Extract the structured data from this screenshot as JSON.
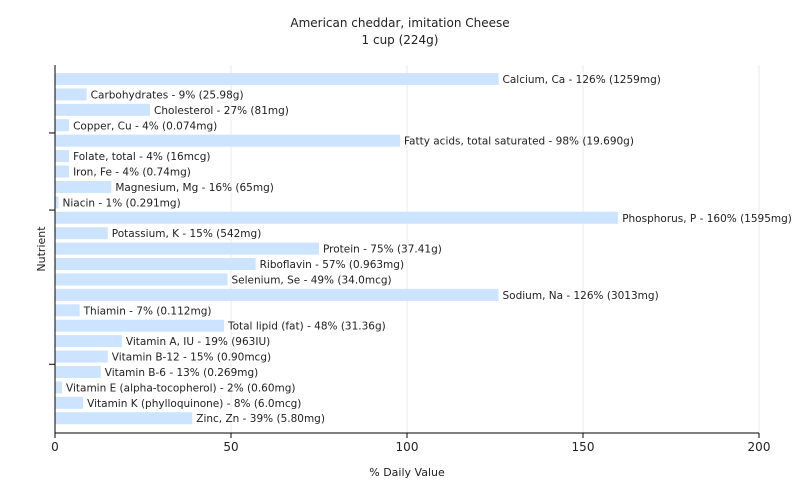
{
  "chart_data": {
    "type": "bar",
    "orientation": "horizontal",
    "title": "American cheddar, imitation Cheese",
    "subtitle": "1 cup (224g)",
    "xlabel": "% Daily Value",
    "ylabel": "Nutrient",
    "xlim": [
      0,
      200
    ],
    "xticks": [
      0,
      50,
      100,
      150,
      200
    ],
    "grid": true,
    "bar_color": "#cce4ff",
    "categories": [
      "Calcium, Ca",
      "Carbohydrates",
      "Cholesterol",
      "Copper, Cu",
      "Fatty acids, total saturated",
      "Folate, total",
      "Iron, Fe",
      "Magnesium, Mg",
      "Niacin",
      "Phosphorus, P",
      "Potassium, K",
      "Protein",
      "Riboflavin",
      "Selenium, Se",
      "Sodium, Na",
      "Thiamin",
      "Total lipid (fat)",
      "Vitamin A, IU",
      "Vitamin B-12",
      "Vitamin B-6",
      "Vitamin E (alpha-tocopherol)",
      "Vitamin K (phylloquinone)",
      "Zinc, Zn"
    ],
    "values": [
      126,
      9,
      27,
      4,
      98,
      4,
      4,
      16,
      1,
      160,
      15,
      75,
      57,
      49,
      126,
      7,
      48,
      19,
      15,
      13,
      2,
      8,
      39
    ],
    "labels": [
      "Calcium, Ca - 126% (1259mg)",
      "Carbohydrates - 9% (25.98g)",
      "Cholesterol - 27% (81mg)",
      "Copper, Cu - 4% (0.074mg)",
      "Fatty acids, total saturated - 98% (19.690g)",
      "Folate, total - 4% (16mcg)",
      "Iron, Fe - 4% (0.74mg)",
      "Magnesium, Mg - 16% (65mg)",
      "Niacin - 1% (0.291mg)",
      "Phosphorus, P - 160% (1595mg)",
      "Potassium, K - 15% (542mg)",
      "Protein - 75% (37.41g)",
      "Riboflavin - 57% (0.963mg)",
      "Selenium, Se - 49% (34.0mcg)",
      "Sodium, Na - 126% (3013mg)",
      "Thiamin - 7% (0.112mg)",
      "Total lipid (fat) - 48% (31.36g)",
      "Vitamin A, IU - 19% (963IU)",
      "Vitamin B-12 - 15% (0.90mcg)",
      "Vitamin B-6 - 13% (0.269mg)",
      "Vitamin E (alpha-tocopherol) - 2% (0.60mg)",
      "Vitamin K (phylloquinone) - 8% (6.0mcg)",
      "Zinc, Zn - 39% (5.80mg)"
    ]
  }
}
